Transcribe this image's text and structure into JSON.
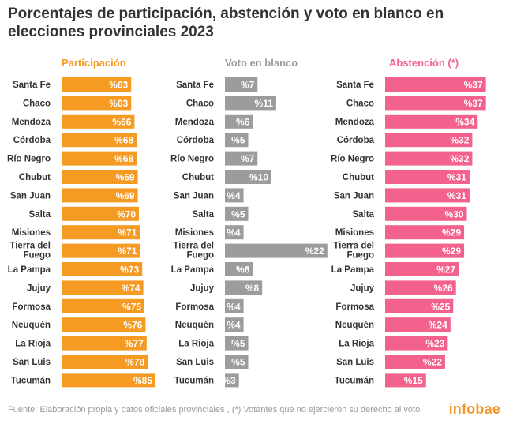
{
  "title": "Porcentajes de participación, abstención y voto en blanco en elecciones provinciales 2023",
  "footer": "Fuente: Elaboración propia y datos oficiales provinciales , (*) Votantes que no ejercieron su derecho al voto",
  "brand": "infobae",
  "chart_data": {
    "type": "bar",
    "orientation": "horizontal",
    "categories": [
      "Santa Fe",
      "Chaco",
      "Mendoza",
      "Córdoba",
      "Río Negro",
      "Chubut",
      "San Juan",
      "Salta",
      "Misiones",
      "Tierra del Fuego",
      "La Pampa",
      "Jujuy",
      "Formosa",
      "Neuquén",
      "La Rioja",
      "San Luis",
      "Tucumán"
    ],
    "value_prefix": "%",
    "panels": [
      {
        "name": "Participación",
        "color": "#f59a23",
        "values": [
          63,
          63,
          66,
          68,
          68,
          69,
          69,
          70,
          71,
          71,
          73,
          74,
          75,
          76,
          77,
          78,
          85
        ]
      },
      {
        "name": "Voto en blanco",
        "color": "#9c9c9c",
        "values": [
          7,
          11,
          6,
          5,
          7,
          10,
          4,
          5,
          4,
          22,
          6,
          8,
          4,
          4,
          5,
          5,
          3
        ]
      },
      {
        "name": "Abstención (*)",
        "color": "#f2628c",
        "values": [
          37,
          37,
          34,
          32,
          32,
          31,
          31,
          30,
          29,
          29,
          27,
          26,
          25,
          24,
          23,
          22,
          15
        ]
      }
    ]
  }
}
